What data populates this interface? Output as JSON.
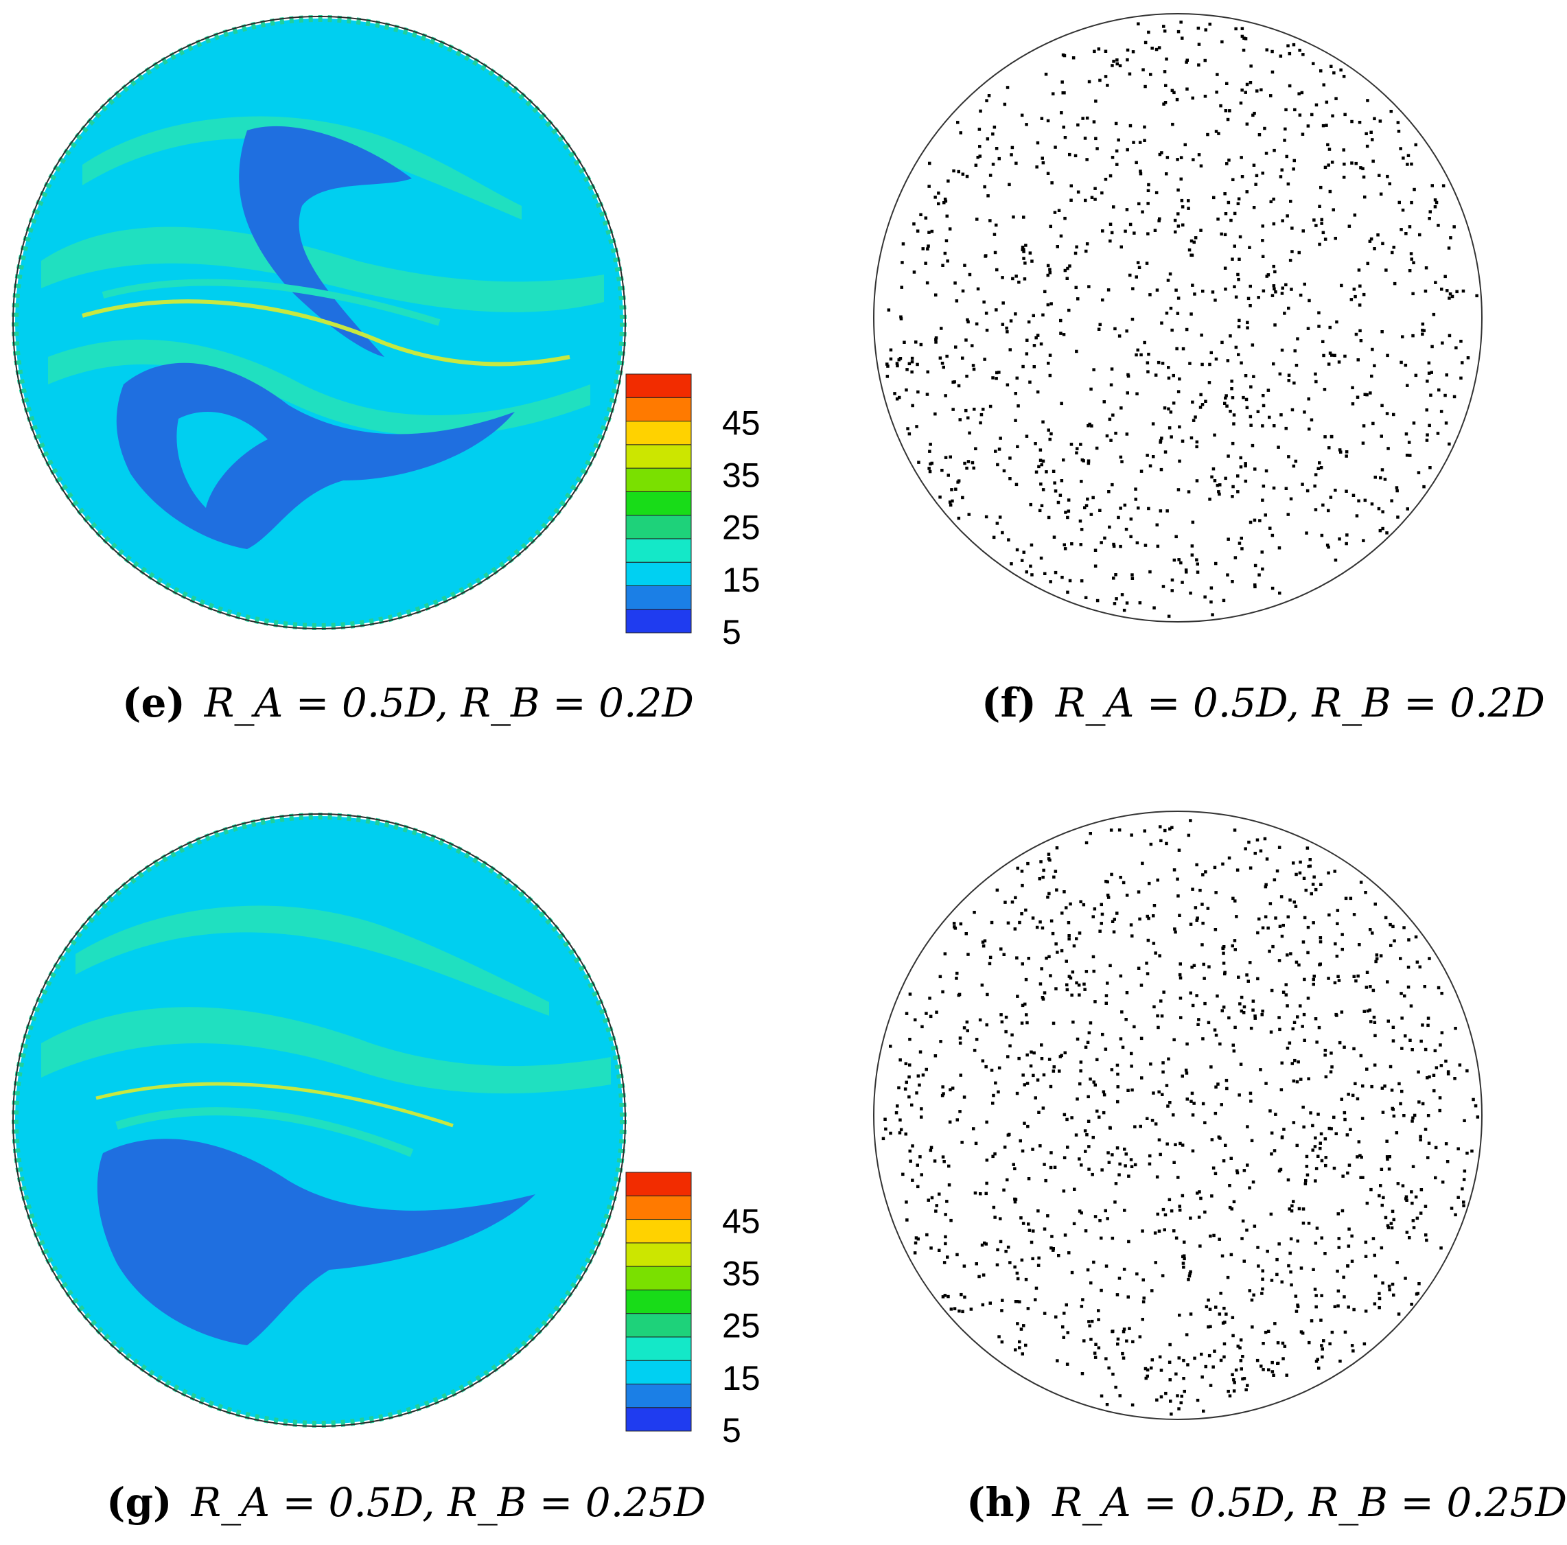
{
  "panels": [
    {
      "id": "e",
      "type": "contour",
      "label": "(e)",
      "equation": "R_A = 0.5D, R_B = 0.2D"
    },
    {
      "id": "f",
      "type": "particles",
      "label": "(f)",
      "equation": "R_A = 0.5D, R_B = 0.2D"
    },
    {
      "id": "g",
      "type": "contour",
      "label": "(g)",
      "equation": "R_A = 0.5D, R_B = 0.25D"
    },
    {
      "id": "h",
      "type": "particles",
      "label": "(h)",
      "equation": "R_A = 0.5D, R_B = 0.25D"
    }
  ],
  "colorbar": {
    "ticks": [
      "45",
      "35",
      "25",
      "15",
      "5"
    ],
    "colors": [
      "#1f3cf0",
      "#1b7fe6",
      "#00d0f2",
      "#14e8c8",
      "#1ed27a",
      "#18dc18",
      "#7ae000",
      "#cce600",
      "#ffd200",
      "#ff7a00",
      "#f22c00"
    ]
  },
  "palette": {
    "low": "#1f6fe0",
    "mid": "#00cff0",
    "band": "#20e0c0",
    "accent": "#5ad85a",
    "dots": "#000000"
  }
}
